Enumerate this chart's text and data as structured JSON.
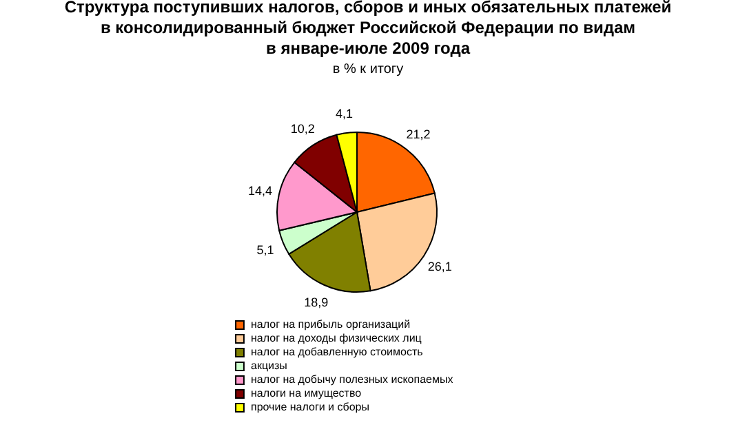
{
  "chart_data": {
    "type": "pie",
    "title": "Структура поступивших налогов, сборов и иных обязательных платежей\nв консолидированный бюджет Российской Федерации по видам\nв январе-июле 2009 года",
    "subtitle": "в % к итогу",
    "categories": [
      "налог на прибыль организаций",
      "налог на доходы физических лиц",
      "налог на добавленную стоимость",
      "акцизы",
      "налог на добычу полезных ископаемых",
      "налоги на имущество",
      "прочие налоги и сборы"
    ],
    "values": [
      21.2,
      26.1,
      18.9,
      5.1,
      14.4,
      10.2,
      4.1
    ],
    "value_labels": [
      "21,2",
      "26,1",
      "18,9",
      "5,1",
      "14,4",
      "10,2",
      "4,1"
    ],
    "colors": [
      "#ff6600",
      "#ffcc99",
      "#808000",
      "#ccffcc",
      "#ff99cc",
      "#800000",
      "#ffff00"
    ],
    "legend": "bottom"
  }
}
